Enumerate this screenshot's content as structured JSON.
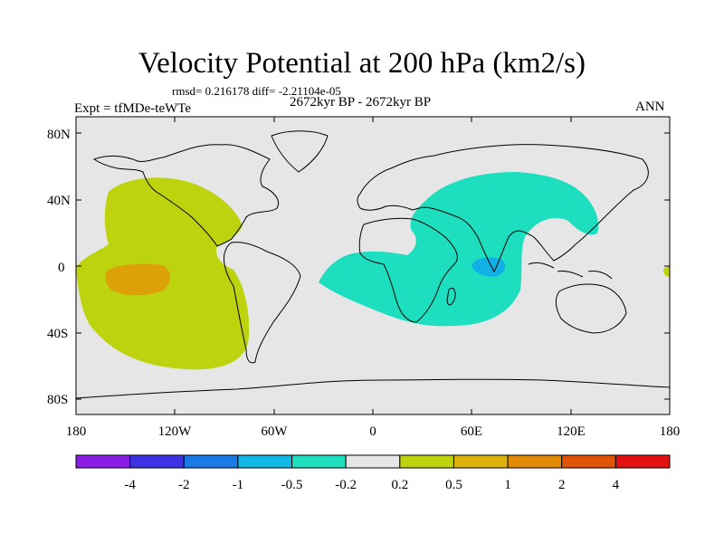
{
  "title": "Velocity Potential at 200 hPa (km2/s)",
  "stats": "rmsd= 0.216178 diff= -2.21104e-05",
  "experiment": "Expt = tfMDe-teWTe",
  "period": "2672kyr BP - 2672kyr BP",
  "season": "ANN",
  "axes": {
    "lat_labels": [
      "80N",
      "40N",
      "0",
      "40S",
      "80S"
    ],
    "lon_labels": [
      "180",
      "120W",
      "60W",
      "0",
      "60E",
      "120E",
      "180"
    ]
  },
  "colors": {
    "ocean_land": "#e6e6e6",
    "contour_green": "#bcd30e",
    "contour_orange": "#dca106",
    "contour_cyan": "#1ddfc0",
    "contour_blue": "#11b0e6"
  },
  "colorbar": {
    "colors": [
      "#8a1ce3",
      "#3b32e1",
      "#1a7ae6",
      "#14b8e7",
      "#1ddfc0",
      "#e6e6e6",
      "#bcd30e",
      "#ddb20a",
      "#e08a06",
      "#e05406",
      "#e31010"
    ],
    "labels": [
      "-4",
      "-2",
      "-1",
      "-0.5",
      "-0.2",
      "0.2",
      "0.5",
      "1",
      "2",
      "4"
    ]
  }
}
